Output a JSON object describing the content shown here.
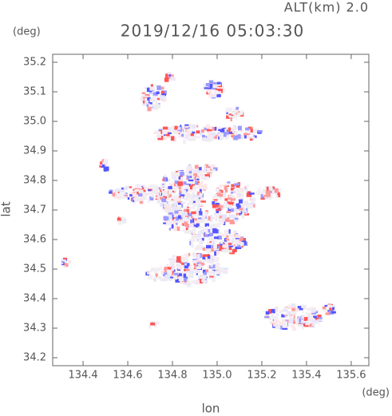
{
  "chart_data": {
    "type": "field",
    "title": "2019/12/16 05:03:30",
    "annotation": "ALT(km) 2.0",
    "xlabel": "lon",
    "ylabel": "lat",
    "xunit": "(deg)",
    "yunit": "(deg)",
    "xlim": [
      134.264,
      135.679
    ],
    "ylim": [
      34.173,
      35.227
    ],
    "xticks": [
      134.4,
      134.6,
      134.8,
      {
        "value": 135.0,
        "label": "135.0"
      },
      135.2,
      135.4,
      135.6
    ],
    "yticks": [
      34.2,
      34.3,
      34.4,
      34.5,
      34.6,
      34.7,
      34.8,
      34.9,
      {
        "value": 35.0,
        "label": "35.0"
      },
      35.1,
      35.2
    ]
  }
}
